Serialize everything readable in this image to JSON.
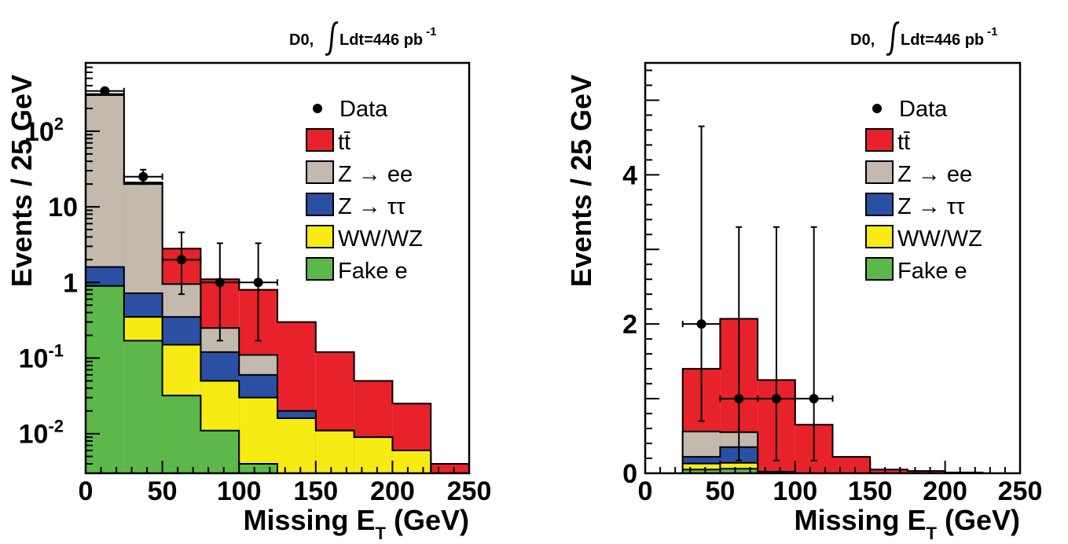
{
  "colors": {
    "fake_e": "#5cb84a",
    "ww_wz": "#f6ec14",
    "z_tautau": "#2b4fa3",
    "z_ee": "#c3b9ad",
    "ttbar": "#e8222a"
  },
  "chart_data": [
    {
      "type": "stacked-histogram",
      "annotation": {
        "prefix": "D0,",
        "lumi": "Ldt=446 pb",
        "lumi_sup": "-1"
      },
      "ylabel": "Events / 25 GeV",
      "xlabel_main": "Missing E",
      "xlabel_sub": "T",
      "xlabel_unit": "(GeV)",
      "yscale": "log",
      "xlim": [
        0,
        250
      ],
      "ylim": [
        0.003,
        800
      ],
      "x_ticks": [
        "0",
        "50",
        "100",
        "150",
        "200",
        "250"
      ],
      "y_ticks": [
        {
          "value": 0.01,
          "base": "10",
          "sup": "-2"
        },
        {
          "value": 0.1,
          "base": "10",
          "sup": "-1"
        },
        {
          "value": 1,
          "base": "1",
          "sup": ""
        },
        {
          "value": 10,
          "base": "10",
          "sup": ""
        },
        {
          "value": 100,
          "base": "10",
          "sup": "2"
        }
      ],
      "bin_edges": [
        0,
        25,
        50,
        75,
        100,
        125,
        150,
        175,
        200,
        225,
        250
      ],
      "stack_tops": [
        {
          "name": "Fake e",
          "key": "fake_e",
          "values": [
            0.9,
            0.17,
            0.032,
            0.011,
            0.004,
            0.003,
            0.003,
            0.003,
            0.003,
            0.003
          ]
        },
        {
          "name": "WW/WZ",
          "key": "ww_wz",
          "values": [
            0.9,
            0.35,
            0.15,
            0.05,
            0.03,
            0.016,
            0.011,
            0.009,
            0.006,
            0.003
          ]
        },
        {
          "name": "Z → ττ",
          "key": "z_tautau",
          "values": [
            1.6,
            0.72,
            0.35,
            0.12,
            0.06,
            0.02,
            0.011,
            0.009,
            0.006,
            0.003
          ]
        },
        {
          "name": "Z → ee",
          "key": "z_ee",
          "values": [
            300,
            20,
            0.95,
            0.25,
            0.11,
            0.02,
            0.011,
            0.009,
            0.006,
            0.003
          ]
        },
        {
          "name": "tt̄",
          "key": "ttbar",
          "values": [
            310,
            21,
            2.8,
            1.1,
            0.8,
            0.3,
            0.12,
            0.05,
            0.025,
            0.004
          ]
        }
      ],
      "data_points": [
        {
          "x": 12.5,
          "y": 340,
          "err_lo": 318,
          "err_hi": 360,
          "xerr": 12.5
        },
        {
          "x": 37.5,
          "y": 25,
          "err_lo": 20,
          "err_hi": 31,
          "xerr": 12.5
        },
        {
          "x": 62.5,
          "y": 2,
          "err_lo": 0.7,
          "err_hi": 4.6,
          "xerr": 12.5
        },
        {
          "x": 87.5,
          "y": 1,
          "err_lo": 0.17,
          "err_hi": 3.3,
          "xerr": 12.5
        },
        {
          "x": 112.5,
          "y": 1,
          "err_lo": 0.17,
          "err_hi": 3.3,
          "xerr": 12.5
        }
      ]
    },
    {
      "type": "stacked-histogram",
      "annotation": {
        "prefix": "D0,",
        "lumi": "Ldt=446 pb",
        "lumi_sup": "-1"
      },
      "ylabel": "Events / 25 GeV",
      "xlabel_main": "Missing E",
      "xlabel_sub": "T",
      "xlabel_unit": "(GeV)",
      "yscale": "linear",
      "xlim": [
        0,
        250
      ],
      "ylim": [
        0,
        5.5
      ],
      "x_ticks": [
        "0",
        "50",
        "100",
        "150",
        "200",
        "250"
      ],
      "y_ticks": [
        {
          "value": 0,
          "base": "0",
          "sup": ""
        },
        {
          "value": 2,
          "base": "2",
          "sup": ""
        },
        {
          "value": 4,
          "base": "4",
          "sup": ""
        }
      ],
      "bin_edges": [
        25,
        50,
        75,
        100,
        125,
        150,
        175,
        200,
        225,
        250
      ],
      "stack_tops": [
        {
          "name": "Fake e",
          "key": "fake_e",
          "values": [
            0.05,
            0.06,
            0.0,
            0.0,
            0.0,
            0.0,
            0.0,
            0.0,
            0.0
          ]
        },
        {
          "name": "WW/WZ",
          "key": "ww_wz",
          "values": [
            0.13,
            0.14,
            0.01,
            0.0,
            0.0,
            0.0,
            0.0,
            0.0,
            0.0
          ]
        },
        {
          "name": "Z → ττ",
          "key": "z_tautau",
          "values": [
            0.22,
            0.35,
            0.02,
            0.0,
            0.0,
            0.0,
            0.0,
            0.0,
            0.0
          ]
        },
        {
          "name": "Z → ee",
          "key": "z_ee",
          "values": [
            0.56,
            0.55,
            0.02,
            0.0,
            0.0,
            0.0,
            0.0,
            0.0,
            0.0
          ]
        },
        {
          "name": "tt̄",
          "key": "ttbar",
          "values": [
            1.4,
            2.07,
            1.25,
            0.65,
            0.22,
            0.05,
            0.03,
            0.01,
            0.0
          ]
        }
      ],
      "data_points": [
        {
          "x": 37.5,
          "y": 2,
          "err_lo": 0.7,
          "err_hi": 4.65,
          "xerr": 12.5
        },
        {
          "x": 62.5,
          "y": 1,
          "err_lo": 0.17,
          "err_hi": 3.3,
          "xerr": 12.5
        },
        {
          "x": 87.5,
          "y": 1,
          "err_lo": 0.17,
          "err_hi": 3.3,
          "xerr": 12.5
        },
        {
          "x": 112.5,
          "y": 1,
          "err_lo": 0.17,
          "err_hi": 3.3,
          "xerr": 12.5
        }
      ]
    }
  ],
  "legend": {
    "data_label": "Data",
    "entries": [
      {
        "label": "tt̄",
        "key": "ttbar"
      },
      {
        "label": "Z → ee",
        "key": "z_ee"
      },
      {
        "label": "Z → ττ",
        "key": "z_tautau"
      },
      {
        "label": "WW/WZ",
        "key": "ww_wz"
      },
      {
        "label": "Fake e",
        "key": "fake_e"
      }
    ]
  }
}
